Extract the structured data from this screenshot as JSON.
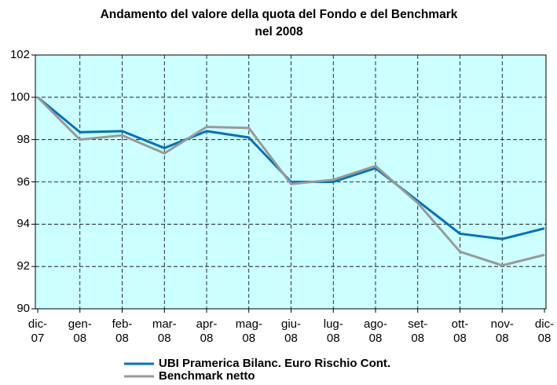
{
  "chart_data": {
    "type": "line",
    "title": "Andamento del valore della quota del Fondo e del Benchmark nel 2008",
    "categories": [
      "dic-07",
      "gen-08",
      "feb-08",
      "mar-08",
      "apr-08",
      "mag-08",
      "giu-08",
      "lug-08",
      "ago-08",
      "set-08",
      "ott-08",
      "nov-08",
      "dic-08"
    ],
    "series": [
      {
        "name": "UBI Pramerica Bilanc. Euro Rischio Cont.",
        "color": "#0070C0",
        "values": [
          100,
          98.35,
          98.4,
          97.6,
          98.4,
          98.1,
          96.0,
          96.0,
          96.65,
          95.1,
          93.55,
          93.3,
          93.8
        ]
      },
      {
        "name": "Benchmark netto",
        "color": "#999999",
        "values": [
          100,
          98.0,
          98.2,
          97.35,
          98.6,
          98.55,
          95.9,
          96.1,
          96.75,
          95.0,
          92.7,
          92.05,
          92.55
        ]
      }
    ],
    "ylim": [
      90,
      102
    ],
    "yticks": [
      90,
      92,
      94,
      96,
      98,
      100,
      102
    ],
    "grid": true,
    "background": "#CCFFFF",
    "legend": "bottom"
  }
}
